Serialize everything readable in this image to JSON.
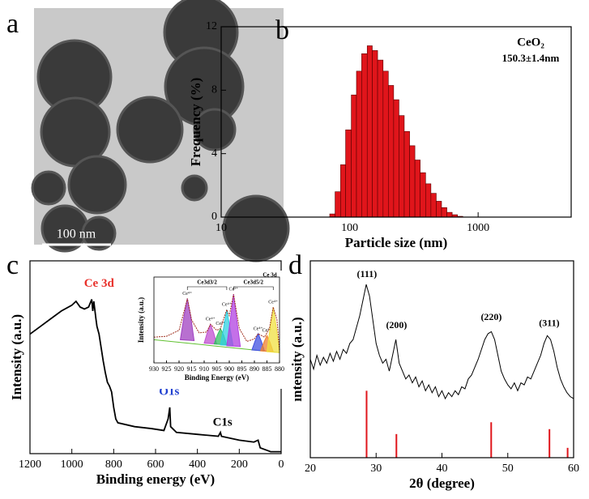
{
  "panel_labels": [
    "a",
    "b",
    "c",
    "d"
  ],
  "image": {
    "scale_bar": "100 nm"
  },
  "chart_data": [
    {
      "type": "histogram",
      "xlabel": "Particle size (nm)",
      "ylabel": "Frequency (%)",
      "annotations": [
        "CeO₂",
        "150.3±1.4nm"
      ],
      "color": "#e0151b",
      "log_x": true,
      "xlim": [
        10,
        5300
      ],
      "xticks": [
        10,
        100,
        1000
      ],
      "ylim": [
        0,
        12
      ],
      "yticks": [
        0,
        4,
        8,
        12
      ],
      "bins": [
        70,
        77,
        85,
        93,
        103,
        113,
        124,
        137,
        150,
        165,
        182,
        200,
        220,
        242,
        266,
        293,
        322,
        354,
        390,
        429,
        472,
        519,
        571,
        628,
        691,
        760
      ],
      "values": [
        0.2,
        1.6,
        3.3,
        5.5,
        7.7,
        9.2,
        10.3,
        10.8,
        10.5,
        9.9,
        9.2,
        8.3,
        7.4,
        6.4,
        5.4,
        4.5,
        3.6,
        2.8,
        2.1,
        1.5,
        1.0,
        0.6,
        0.3,
        0.15,
        0.05
      ]
    },
    {
      "type": "line",
      "xlabel": "Binding energy (eV)",
      "ylabel": "Intensity (a.u.)",
      "annotations": [
        {
          "text": "Ce 3d",
          "color": "#e8302a"
        },
        {
          "text": "O1s",
          "color": "#1f3fd0"
        },
        {
          "text": "C1s",
          "color": "#000000"
        }
      ],
      "color": "#000000",
      "xlim": [
        1200,
        0
      ],
      "xticks": [
        1200,
        1000,
        800,
        600,
        400,
        200,
        0
      ],
      "ylim": [
        0,
        100
      ],
      "x": [
        1200,
        1150,
        1100,
        1050,
        1000,
        980,
        960,
        940,
        920,
        905,
        900,
        895,
        885,
        880,
        870,
        860,
        850,
        840,
        830,
        820,
        810,
        800,
        790,
        780,
        700,
        620,
        560,
        540,
        532,
        528,
        500,
        400,
        300,
        290,
        285,
        200,
        130,
        110,
        100,
        50,
        0
      ],
      "values": [
        62,
        66,
        70,
        74,
        77,
        79,
        76,
        75,
        76,
        80,
        74,
        79,
        70,
        66,
        62,
        55,
        48,
        42,
        37,
        35,
        32,
        24,
        18,
        16,
        14,
        13,
        12,
        18,
        24,
        14,
        11,
        10,
        9,
        11,
        9,
        7,
        6,
        7,
        3,
        1,
        1
      ]
    },
    {
      "type": "peak-fit",
      "xlabel": "Binding Energy (eV)",
      "ylabel": "Intensity (a.u.)",
      "annotations": [
        "Ce 3d",
        "Ce3d3/2",
        "Ce3d5/2"
      ],
      "color": "#000000",
      "xlim": [
        930,
        880
      ],
      "xticks": [
        930,
        925,
        920,
        915,
        910,
        905,
        900,
        895,
        890,
        885,
        880
      ],
      "ylim": [
        0,
        100
      ],
      "x": [
        930,
        925,
        920,
        918,
        916.7,
        915,
        912,
        909,
        907.5,
        905,
        903.5,
        901,
        900,
        898.3,
        896,
        893,
        890,
        888.5,
        886,
        884,
        882.5,
        881,
        880
      ],
      "values": [
        30,
        31,
        38,
        60,
        75,
        50,
        35,
        36,
        45,
        38,
        40,
        62,
        55,
        80,
        40,
        25,
        28,
        34,
        30,
        40,
        65,
        50,
        15
      ],
      "series": [
        {
          "name": "Ce⁴⁺",
          "color": "#a040c0",
          "x": [
            919.5,
            918,
            916.7,
            915.4,
            914
          ],
          "values": [
            27,
            55,
            75,
            55,
            26
          ]
        },
        {
          "name": "Ce⁴⁺",
          "color": "#c050d0",
          "x": [
            910,
            908.8,
            907.5,
            906.2,
            905
          ],
          "values": [
            23,
            35,
            45,
            35,
            22
          ]
        },
        {
          "name": "Ce³⁺",
          "color": "#30c060",
          "x": [
            906,
            904.8,
            903.5,
            902.2,
            901
          ],
          "values": [
            22,
            32,
            40,
            32,
            21
          ]
        },
        {
          "name": "Ce⁴⁺",
          "color": "#30d0e0",
          "x": [
            903.5,
            902.2,
            901,
            899.8,
            898.5
          ],
          "values": [
            21,
            42,
            62,
            42,
            20
          ]
        },
        {
          "name": "Ce³⁺",
          "color": "#b040e0",
          "x": [
            901,
            899.6,
            898.3,
            897,
            895.6
          ],
          "values": [
            20,
            50,
            80,
            50,
            19
          ]
        },
        {
          "name": "Ce⁴⁺",
          "color": "#4050e0",
          "x": [
            891,
            889.8,
            888.5,
            887.2,
            886
          ],
          "values": [
            15,
            25,
            34,
            25,
            14
          ]
        },
        {
          "name": "Ce³⁺",
          "color": "#f08030",
          "x": [
            887.5,
            886.2,
            885,
            883.8,
            882.5
          ],
          "values": [
            14,
            24,
            32,
            24,
            13
          ]
        },
        {
          "name": "Ce⁴⁺",
          "color": "#f0e040",
          "x": [
            885,
            883.8,
            882.5,
            881.2,
            880
          ],
          "values": [
            13,
            40,
            65,
            40,
            12
          ]
        }
      ]
    },
    {
      "type": "line",
      "xlabel": "2θ (degree)",
      "ylabel": "ıntensity (a.u.)",
      "annotations": [
        "(111)",
        "(200)",
        "(220)",
        "(311)"
      ],
      "color": "#000000",
      "xlim": [
        20,
        60
      ],
      "xticks": [
        20,
        30,
        40,
        50,
        60
      ],
      "ylim": [
        0,
        100
      ],
      "x": [
        20,
        20.5,
        21,
        21.5,
        22,
        22.5,
        23,
        23.5,
        24,
        24.5,
        25,
        25.5,
        26,
        26.5,
        27,
        27.5,
        28,
        28.5,
        29,
        29.5,
        30,
        30.5,
        31,
        31.5,
        32,
        32.5,
        33,
        33.5,
        34,
        34.5,
        35,
        35.5,
        36,
        36.5,
        37,
        37.5,
        38,
        38.5,
        39,
        39.5,
        40,
        40.5,
        41,
        41.5,
        42,
        42.5,
        43,
        43.5,
        44,
        44.5,
        45,
        45.5,
        46,
        46.5,
        47,
        47.5,
        48,
        48.5,
        49,
        49.5,
        50,
        50.5,
        51,
        51.5,
        52,
        52.5,
        53,
        53.5,
        54,
        54.5,
        55,
        55.5,
        56,
        56.5,
        57,
        57.5,
        58,
        58.5,
        59,
        59.5,
        60
      ],
      "values": [
        50,
        45,
        52,
        47,
        51,
        48,
        53,
        49,
        54,
        50,
        55,
        53,
        58,
        60,
        66,
        72,
        80,
        88,
        82,
        70,
        58,
        52,
        48,
        50,
        44,
        52,
        60,
        48,
        44,
        40,
        42,
        38,
        41,
        36,
        39,
        34,
        37,
        33,
        36,
        31,
        34,
        30,
        33,
        31,
        34,
        32,
        36,
        35,
        40,
        42,
        46,
        50,
        55,
        60,
        63,
        64,
        60,
        52,
        44,
        40,
        37,
        35,
        38,
        34,
        38,
        37,
        41,
        40,
        44,
        48,
        52,
        58,
        62,
        60,
        54,
        46,
        40,
        36,
        33,
        31,
        30
      ],
      "reference": {
        "color": "#e0151b",
        "x": [
          28.55,
          33.08,
          47.48,
          56.33,
          59.09
        ],
        "values": [
          34,
          12,
          18,
          14.5,
          5
        ]
      }
    }
  ]
}
